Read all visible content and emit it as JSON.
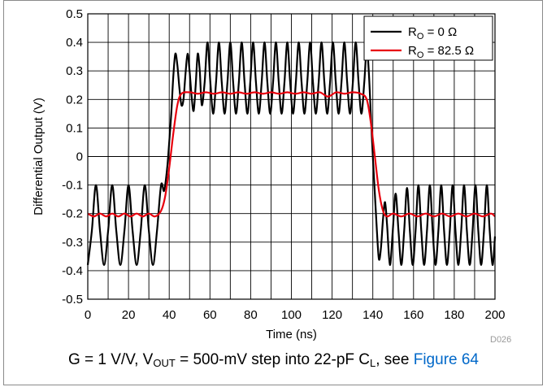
{
  "chart_data": {
    "type": "line",
    "xlabel": "Time (ns)",
    "ylabel": "Differential Output (V)",
    "xlim": [
      0,
      200
    ],
    "ylim": [
      -0.5,
      0.5
    ],
    "x_ticks": [
      0,
      20,
      40,
      60,
      80,
      100,
      120,
      140,
      160,
      180,
      200
    ],
    "x_tick_labels": [
      "0",
      "20",
      "40",
      "60",
      "80",
      "100",
      "120",
      "140",
      "160",
      "180",
      "200"
    ],
    "y_ticks": [
      -0.5,
      -0.4,
      -0.3,
      -0.2,
      -0.1,
      0,
      0.1,
      0.2,
      0.3,
      0.4,
      0.5
    ],
    "y_tick_labels": [
      "-0.5",
      "-0.4",
      "-0.3",
      "-0.2",
      "-0.1",
      "0",
      "0.1",
      "0.2",
      "0.3",
      "0.4",
      "0.5"
    ],
    "grid": true,
    "x_minor_gridlines_per_major": 2,
    "legend_position": "top-right",
    "series": [
      {
        "name_main": "R",
        "name_sub": "O",
        "name_rest": " = 0 Ω",
        "color": "#000000",
        "points": [
          [
            0,
            -0.38
          ],
          [
            2,
            -0.26
          ],
          [
            4,
            -0.1
          ],
          [
            6,
            -0.26
          ],
          [
            8,
            -0.38
          ],
          [
            10,
            -0.26
          ],
          [
            12,
            -0.1
          ],
          [
            14,
            -0.26
          ],
          [
            16,
            -0.38
          ],
          [
            18,
            -0.26
          ],
          [
            20,
            -0.1
          ],
          [
            22,
            -0.26
          ],
          [
            24,
            -0.38
          ],
          [
            26,
            -0.26
          ],
          [
            28,
            -0.1
          ],
          [
            30,
            -0.26
          ],
          [
            32,
            -0.38
          ],
          [
            34,
            -0.26
          ],
          [
            36,
            -0.1
          ],
          [
            37.5,
            -0.12
          ],
          [
            39,
            -0.04
          ],
          [
            40,
            0.05
          ],
          [
            41,
            0.15
          ],
          [
            42,
            0.28
          ],
          [
            43,
            0.36
          ],
          [
            44,
            0.32
          ],
          [
            45,
            0.24
          ],
          [
            46,
            0.18
          ],
          [
            47,
            0.2
          ],
          [
            48,
            0.29
          ],
          [
            49,
            0.36
          ],
          [
            50,
            0.3
          ],
          [
            51,
            0.21
          ],
          [
            52,
            0.16
          ],
          [
            53,
            0.25
          ],
          [
            54,
            0.36
          ],
          [
            55,
            0.3
          ],
          [
            56,
            0.18
          ],
          [
            57.4,
            0.26
          ],
          [
            58.8,
            0.4
          ],
          [
            60.2,
            0.26
          ],
          [
            61.6,
            0.15
          ],
          [
            63,
            0.26
          ],
          [
            64.4,
            0.4
          ],
          [
            65.8,
            0.26
          ],
          [
            67.2,
            0.15
          ],
          [
            68.6,
            0.26
          ],
          [
            70,
            0.4
          ],
          [
            71.4,
            0.26
          ],
          [
            72.8,
            0.15
          ],
          [
            74.2,
            0.26
          ],
          [
            75.6,
            0.4
          ],
          [
            77,
            0.26
          ],
          [
            78.4,
            0.15
          ],
          [
            79.8,
            0.26
          ],
          [
            81.2,
            0.4
          ],
          [
            82.6,
            0.26
          ],
          [
            84,
            0.15
          ],
          [
            85.4,
            0.26
          ],
          [
            86.8,
            0.4
          ],
          [
            88.2,
            0.26
          ],
          [
            89.6,
            0.15
          ],
          [
            91,
            0.26
          ],
          [
            92.4,
            0.4
          ],
          [
            93.8,
            0.26
          ],
          [
            95.2,
            0.15
          ],
          [
            96.6,
            0.26
          ],
          [
            98,
            0.4
          ],
          [
            99.4,
            0.26
          ],
          [
            100.8,
            0.15
          ],
          [
            102.2,
            0.26
          ],
          [
            103.6,
            0.4
          ],
          [
            105,
            0.26
          ],
          [
            106.4,
            0.15
          ],
          [
            107.8,
            0.26
          ],
          [
            109.2,
            0.4
          ],
          [
            110.6,
            0.26
          ],
          [
            112,
            0.15
          ],
          [
            113.4,
            0.26
          ],
          [
            114.8,
            0.4
          ],
          [
            116.2,
            0.26
          ],
          [
            117.6,
            0.15
          ],
          [
            119,
            0.26
          ],
          [
            120.4,
            0.4
          ],
          [
            121.8,
            0.26
          ],
          [
            123.2,
            0.15
          ],
          [
            124.6,
            0.26
          ],
          [
            126,
            0.4
          ],
          [
            127.4,
            0.26
          ],
          [
            128.8,
            0.15
          ],
          [
            130.2,
            0.26
          ],
          [
            131.6,
            0.4
          ],
          [
            133,
            0.26
          ],
          [
            134.4,
            0.15
          ],
          [
            135.8,
            0.26
          ],
          [
            137,
            0.38
          ],
          [
            138,
            0.3
          ],
          [
            139,
            0.15
          ],
          [
            140,
            0.0
          ],
          [
            141,
            -0.13
          ],
          [
            142,
            -0.26
          ],
          [
            143,
            -0.36
          ],
          [
            144,
            -0.32
          ],
          [
            145,
            -0.22
          ],
          [
            146,
            -0.16
          ],
          [
            147,
            -0.24
          ],
          [
            148.4,
            -0.38
          ],
          [
            149.8,
            -0.26
          ],
          [
            151.2,
            -0.13
          ],
          [
            152.6,
            -0.26
          ],
          [
            154,
            -0.38
          ],
          [
            155.4,
            -0.26
          ],
          [
            156.8,
            -0.11
          ],
          [
            158.2,
            -0.26
          ],
          [
            159.6,
            -0.38
          ],
          [
            161,
            -0.26
          ],
          [
            162.4,
            -0.1
          ],
          [
            163.8,
            -0.26
          ],
          [
            165.2,
            -0.38
          ],
          [
            166.6,
            -0.26
          ],
          [
            168,
            -0.1
          ],
          [
            169.4,
            -0.26
          ],
          [
            170.8,
            -0.38
          ],
          [
            172.2,
            -0.26
          ],
          [
            173.6,
            -0.1
          ],
          [
            175,
            -0.26
          ],
          [
            176.4,
            -0.38
          ],
          [
            177.8,
            -0.26
          ],
          [
            179.2,
            -0.1
          ],
          [
            180.6,
            -0.26
          ],
          [
            182,
            -0.38
          ],
          [
            183.4,
            -0.26
          ],
          [
            184.8,
            -0.1
          ],
          [
            186.2,
            -0.26
          ],
          [
            187.6,
            -0.38
          ],
          [
            189,
            -0.26
          ],
          [
            190.4,
            -0.1
          ],
          [
            191.8,
            -0.26
          ],
          [
            193.2,
            -0.38
          ],
          [
            194.6,
            -0.26
          ],
          [
            196,
            -0.1
          ],
          [
            197.4,
            -0.26
          ],
          [
            198.8,
            -0.38
          ],
          [
            200,
            -0.28
          ]
        ]
      },
      {
        "name_main": "R",
        "name_sub": "O",
        "name_rest": " = 82.5 Ω",
        "color": "#e8000d",
        "points": [
          [
            0,
            -0.2
          ],
          [
            3,
            -0.21
          ],
          [
            6,
            -0.2
          ],
          [
            9,
            -0.21
          ],
          [
            12,
            -0.2
          ],
          [
            15,
            -0.21
          ],
          [
            18,
            -0.2
          ],
          [
            21,
            -0.21
          ],
          [
            24,
            -0.2
          ],
          [
            27,
            -0.21
          ],
          [
            30,
            -0.2
          ],
          [
            33,
            -0.21
          ],
          [
            36,
            -0.19
          ],
          [
            38,
            -0.14
          ],
          [
            40,
            -0.04
          ],
          [
            42,
            0.08
          ],
          [
            44,
            0.18
          ],
          [
            46,
            0.22
          ],
          [
            50,
            0.225
          ],
          [
            54,
            0.22
          ],
          [
            58,
            0.225
          ],
          [
            62,
            0.22
          ],
          [
            66,
            0.225
          ],
          [
            70,
            0.22
          ],
          [
            74,
            0.225
          ],
          [
            78,
            0.22
          ],
          [
            82,
            0.225
          ],
          [
            86,
            0.22
          ],
          [
            90,
            0.225
          ],
          [
            94,
            0.22
          ],
          [
            98,
            0.225
          ],
          [
            102,
            0.22
          ],
          [
            106,
            0.225
          ],
          [
            110,
            0.22
          ],
          [
            114,
            0.225
          ],
          [
            118,
            0.21
          ],
          [
            122,
            0.225
          ],
          [
            126,
            0.22
          ],
          [
            130,
            0.225
          ],
          [
            134,
            0.22
          ],
          [
            137,
            0.2
          ],
          [
            139,
            0.12
          ],
          [
            141,
            0.0
          ],
          [
            143,
            -0.12
          ],
          [
            145,
            -0.19
          ],
          [
            147,
            -0.21
          ],
          [
            150,
            -0.2
          ],
          [
            154,
            -0.21
          ],
          [
            158,
            -0.2
          ],
          [
            162,
            -0.21
          ],
          [
            166,
            -0.2
          ],
          [
            170,
            -0.21
          ],
          [
            174,
            -0.2
          ],
          [
            178,
            -0.21
          ],
          [
            182,
            -0.2
          ],
          [
            186,
            -0.21
          ],
          [
            190,
            -0.2
          ],
          [
            194,
            -0.21
          ],
          [
            198,
            -0.2
          ],
          [
            200,
            -0.21
          ]
        ]
      }
    ]
  },
  "caption": {
    "part1": "G = 1 V/V, V",
    "sub1": "OUT",
    "part2": " = 500-mV step into 22-pF C",
    "sub2": "L",
    "part3": ", see ",
    "link": "Figure 64"
  },
  "figure_id": "D026"
}
